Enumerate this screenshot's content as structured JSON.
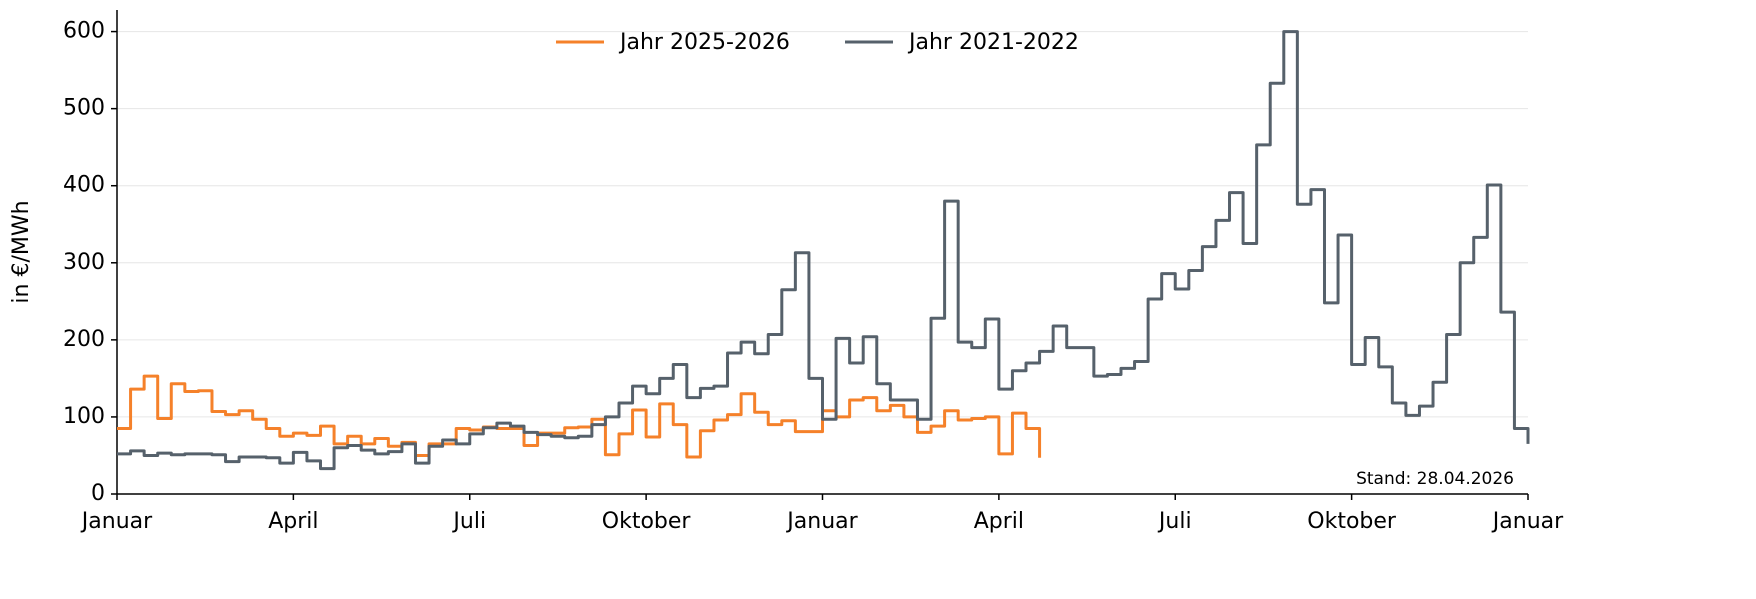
{
  "chart_data": {
    "type": "line",
    "step": true,
    "y_label": "in €/MWh",
    "annotation": "Stand: 28.04.2026",
    "x": [
      0,
      1,
      2,
      3,
      4,
      5,
      6,
      7,
      8,
      9,
      10,
      11,
      12,
      13,
      14,
      15,
      16,
      17,
      18,
      19,
      20,
      21,
      22,
      23,
      24,
      25,
      26,
      27,
      28,
      29,
      30,
      31,
      32,
      33,
      34,
      35,
      36,
      37,
      38,
      39,
      40,
      41,
      42,
      43,
      44,
      45,
      46,
      47,
      48,
      49,
      50,
      51,
      52,
      53,
      54,
      55,
      56,
      57,
      58,
      59,
      60,
      61,
      62,
      63,
      64,
      65,
      66,
      67,
      68,
      69,
      70,
      71,
      72,
      73,
      74,
      75,
      76,
      77,
      78,
      79,
      80,
      81,
      82,
      83,
      84,
      85,
      86,
      87,
      88,
      89,
      90,
      91,
      92,
      93,
      94,
      95,
      96,
      97,
      98,
      99,
      100,
      101,
      102,
      103,
      104
    ],
    "xlim": [
      0,
      104
    ],
    "xticks": [
      {
        "value": 0,
        "label": "Januar"
      },
      {
        "value": 13,
        "label": "April"
      },
      {
        "value": 26,
        "label": "Juli"
      },
      {
        "value": 39,
        "label": "Oktober"
      },
      {
        "value": 52,
        "label": "Januar"
      },
      {
        "value": 65,
        "label": "April"
      },
      {
        "value": 78,
        "label": "Juli"
      },
      {
        "value": 91,
        "label": "Oktober"
      },
      {
        "value": 104,
        "label": "Januar"
      }
    ],
    "ylim": [
      0,
      628
    ],
    "yticks": [
      0,
      100,
      200,
      300,
      400,
      500,
      600
    ],
    "grid": true,
    "legend": "top",
    "series": [
      {
        "name": "Jahr 2025-2026",
        "color": "#f5812a",
        "values": [
          85,
          136,
          153,
          98,
          143,
          133,
          134,
          107,
          103,
          108,
          97,
          85,
          75,
          79,
          76,
          88,
          65,
          75,
          65,
          72,
          62,
          67,
          50,
          65,
          65,
          85,
          83,
          87,
          85,
          85,
          63,
          79,
          79,
          86,
          87,
          97,
          51,
          78,
          109,
          74,
          117,
          90,
          48,
          82,
          96,
          103,
          130,
          106,
          90,
          95,
          81,
          81,
          108,
          100,
          122,
          125,
          108,
          115,
          100,
          80,
          88,
          108,
          96,
          98,
          100,
          52,
          105,
          85,
          47,
          null,
          null,
          null,
          null,
          null,
          null,
          null,
          null,
          null,
          null,
          null,
          null,
          null,
          null,
          null,
          null,
          null,
          null,
          null,
          null,
          null,
          null,
          null,
          null,
          null,
          null,
          null,
          null,
          null,
          null,
          null,
          null,
          null,
          null,
          null,
          null
        ]
      },
      {
        "name": "Jahr 2021-2022",
        "color": "#56616b",
        "values": [
          52,
          56,
          50,
          53,
          51,
          52,
          52,
          51,
          42,
          48,
          48,
          47,
          40,
          54,
          43,
          33,
          60,
          63,
          57,
          52,
          55,
          65,
          40,
          62,
          70,
          65,
          78,
          86,
          92,
          88,
          80,
          77,
          75,
          73,
          75,
          90,
          100,
          118,
          140,
          130,
          150,
          168,
          125,
          137,
          140,
          183,
          197,
          182,
          207,
          265,
          313,
          150,
          97,
          202,
          170,
          204,
          143,
          122,
          122,
          97,
          228,
          380,
          197,
          190,
          227,
          136,
          160,
          170,
          185,
          218,
          190,
          190,
          153,
          155,
          163,
          172,
          253,
          286,
          266,
          290,
          321,
          355,
          391,
          325,
          453,
          533,
          600,
          376,
          395,
          248,
          336,
          168,
          203,
          165,
          118,
          102,
          114,
          145,
          207,
          300,
          333,
          401,
          236,
          85,
          65
        ]
      }
    ]
  }
}
